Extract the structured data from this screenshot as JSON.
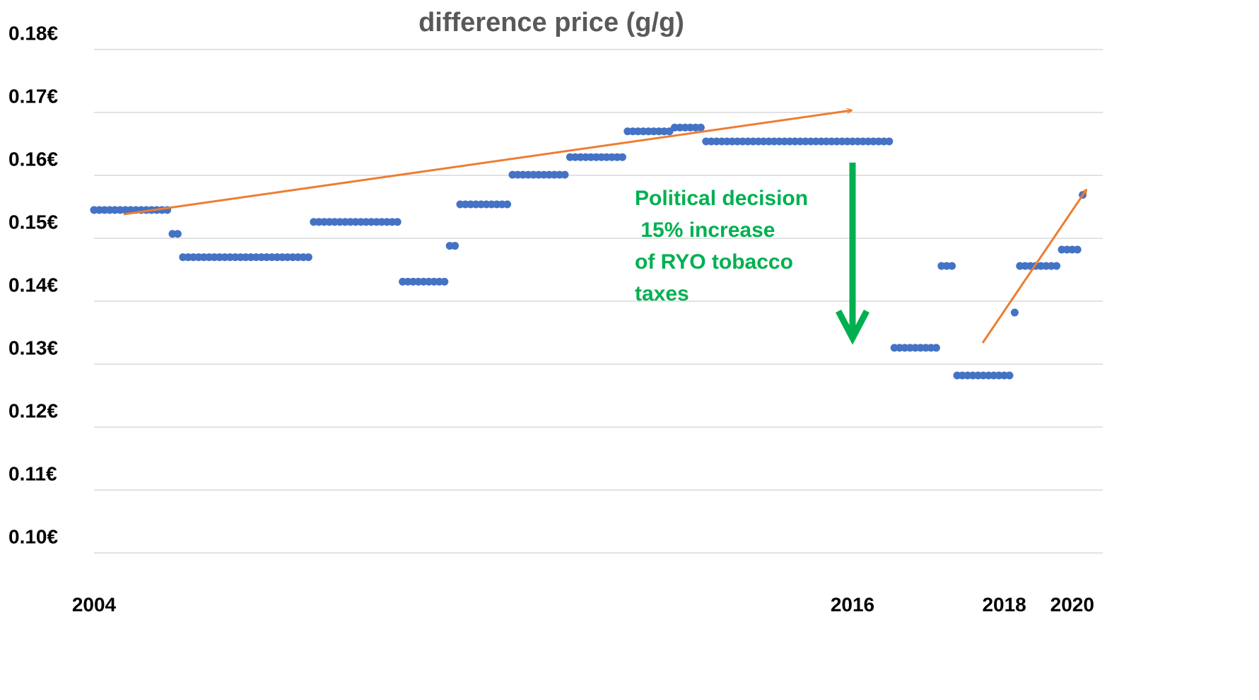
{
  "chart_data": {
    "type": "scatter",
    "title": "difference price (g/g)",
    "annotation": [
      "Political decision",
      " 15% increase",
      "of RYO tobacco",
      "taxes"
    ],
    "color": "#4472c4",
    "grid": true,
    "ylim": [
      0.1,
      0.18
    ],
    "yticks": [
      {
        "value": 0.1,
        "label": "0.10€"
      },
      {
        "value": 0.11,
        "label": "0.11€"
      },
      {
        "value": 0.12,
        "label": "0.12€"
      },
      {
        "value": 0.13,
        "label": "0.13€"
      },
      {
        "value": 0.14,
        "label": "0.14€"
      },
      {
        "value": 0.15,
        "label": "0.15€"
      },
      {
        "value": 0.16,
        "label": "0.16€"
      },
      {
        "value": 0.17,
        "label": "0.17€"
      },
      {
        "value": 0.18,
        "label": "0.18€"
      }
    ],
    "categories": [
      "2004",
      null,
      null,
      null,
      null,
      null,
      null,
      null,
      null,
      null,
      null,
      null,
      null,
      null,
      null,
      null,
      null,
      null,
      null,
      null,
      null,
      null,
      null,
      null,
      null,
      null,
      null,
      null,
      null,
      null,
      null,
      null,
      null,
      null,
      null,
      null,
      null,
      null,
      null,
      null,
      null,
      null,
      null,
      null,
      null,
      null,
      null,
      null,
      null,
      null,
      null,
      null,
      null,
      null,
      null,
      null,
      null,
      null,
      null,
      null,
      null,
      null,
      null,
      null,
      null,
      null,
      null,
      null,
      null,
      null,
      null,
      null,
      null,
      null,
      null,
      null,
      null,
      null,
      null,
      null,
      null,
      null,
      null,
      null,
      null,
      null,
      null,
      null,
      null,
      null,
      null,
      null,
      null,
      null,
      null,
      null,
      null,
      null,
      null,
      null,
      null,
      null,
      null,
      null,
      null,
      null,
      null,
      null,
      null,
      null,
      null,
      null,
      null,
      null,
      null,
      null,
      null,
      null,
      null,
      null,
      null,
      null,
      null,
      null,
      null,
      null,
      null,
      null,
      null,
      null,
      null,
      null,
      null,
      null,
      null,
      null,
      null,
      null,
      null,
      null,
      null,
      null,
      null,
      null,
      null,
      "2016",
      null,
      null,
      null,
      null,
      null,
      null,
      null,
      null,
      null,
      null,
      null,
      null,
      null,
      null,
      null,
      null,
      null,
      null,
      null,
      null,
      null,
      null,
      null,
      null,
      null,
      null,
      null,
      null,
      "2018",
      null,
      null,
      null,
      null,
      null,
      null,
      null,
      null,
      null,
      null,
      null,
      null,
      "2020",
      null,
      null
    ],
    "values": [
      0.1545,
      0.1545,
      0.1545,
      0.1545,
      0.1545,
      0.1545,
      0.1545,
      0.1545,
      0.1545,
      0.1545,
      0.1545,
      0.1545,
      0.1545,
      0.1545,
      0.1545,
      0.1507,
      0.1507,
      0.147,
      0.147,
      0.147,
      0.147,
      0.147,
      0.147,
      0.147,
      0.147,
      0.147,
      0.147,
      0.147,
      0.147,
      0.147,
      0.147,
      0.147,
      0.147,
      0.147,
      0.147,
      0.147,
      0.147,
      0.147,
      0.147,
      0.147,
      0.147,
      0.147,
      0.1526,
      0.1526,
      0.1526,
      0.1526,
      0.1526,
      0.1526,
      0.1526,
      0.1526,
      0.1526,
      0.1526,
      0.1526,
      0.1526,
      0.1526,
      0.1526,
      0.1526,
      0.1526,
      0.1526,
      0.1431,
      0.1431,
      0.1431,
      0.1431,
      0.1431,
      0.1431,
      0.1431,
      0.1431,
      0.1431,
      0.1488,
      0.1488,
      0.1554,
      0.1554,
      0.1554,
      0.1554,
      0.1554,
      0.1554,
      0.1554,
      0.1554,
      0.1554,
      0.1554,
      0.1601,
      0.1601,
      0.1601,
      0.1601,
      0.1601,
      0.1601,
      0.1601,
      0.1601,
      0.1601,
      0.1601,
      0.1601,
      0.1629,
      0.1629,
      0.1629,
      0.1629,
      0.1629,
      0.1629,
      0.1629,
      0.1629,
      0.1629,
      0.1629,
      0.1629,
      0.167,
      0.167,
      0.167,
      0.167,
      0.167,
      0.167,
      0.167,
      0.167,
      0.167,
      0.1676,
      0.1676,
      0.1676,
      0.1676,
      0.1676,
      0.1676,
      0.1654,
      0.1654,
      0.1654,
      0.1654,
      0.1654,
      0.1654,
      0.1654,
      0.1654,
      0.1654,
      0.1654,
      0.1654,
      0.1654,
      0.1654,
      0.1654,
      0.1654,
      0.1654,
      0.1654,
      0.1654,
      0.1654,
      0.1654,
      0.1654,
      0.1654,
      0.1654,
      0.1654,
      0.1654,
      0.1654,
      0.1654,
      0.1654,
      0.1654,
      0.1654,
      0.1654,
      0.1654,
      0.1654,
      0.1654,
      0.1654,
      0.1654,
      0.1326,
      0.1326,
      0.1326,
      0.1326,
      0.1326,
      0.1326,
      0.1326,
      0.1326,
      0.1326,
      0.1456,
      0.1456,
      0.1456,
      0.1282,
      0.1282,
      0.1282,
      0.1282,
      0.1282,
      0.1282,
      0.1282,
      0.1282,
      0.1282,
      0.1282,
      0.1282,
      0.1382,
      0.1456,
      0.1456,
      0.1456,
      0.1456,
      0.1456,
      0.1456,
      0.1456,
      0.1456,
      0.1482,
      0.1482,
      0.1482,
      0.1482,
      0.1569
    ]
  }
}
